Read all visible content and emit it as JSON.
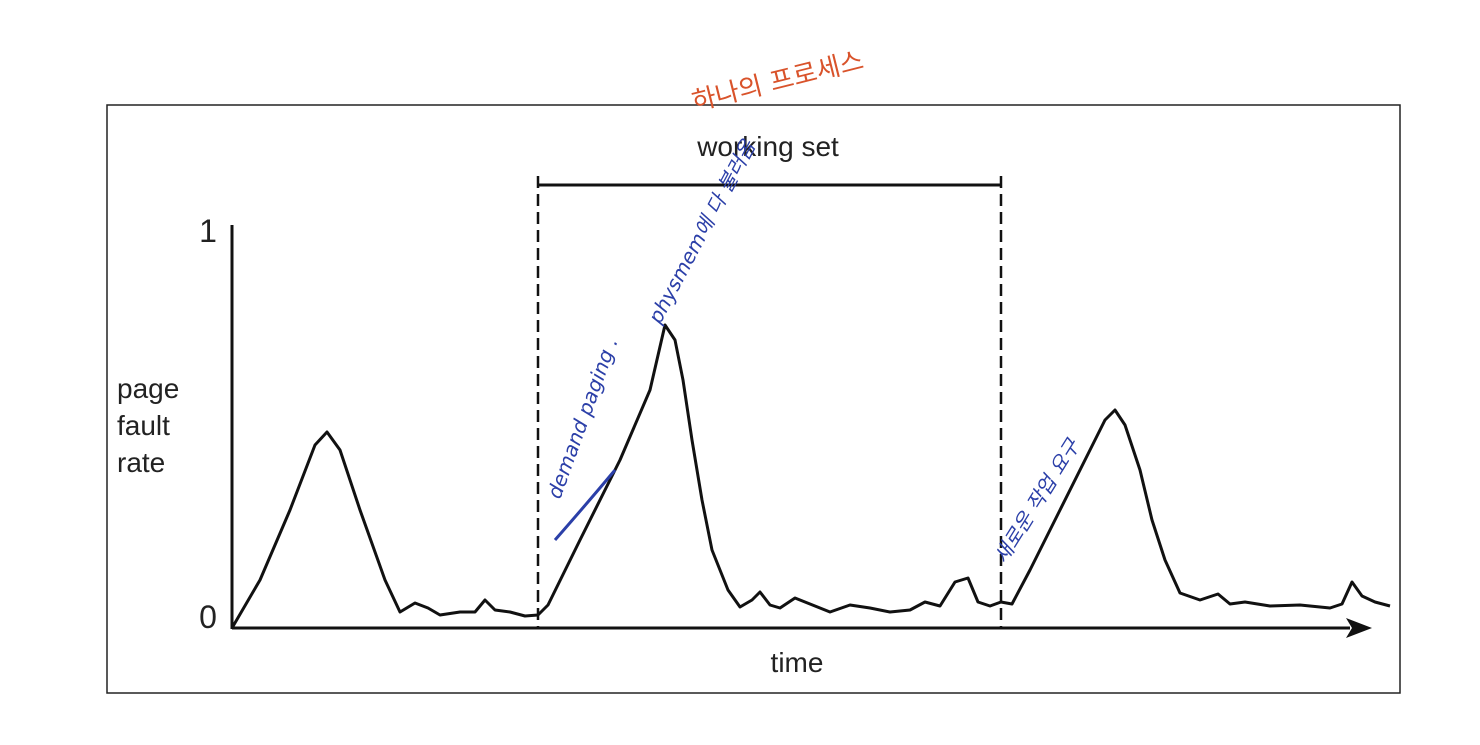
{
  "title_note": "하나의 프로세스",
  "working_set_label": "working set",
  "y_axis": {
    "top": "1",
    "bottom": "0",
    "label_lines": [
      "page",
      "fault",
      "rate"
    ]
  },
  "x_axis": {
    "label": "time"
  },
  "annotations": {
    "rise": "demand paging .",
    "peak": "physmem에 다 불러옴",
    "new_work": "새로운 작업 요구"
  }
}
